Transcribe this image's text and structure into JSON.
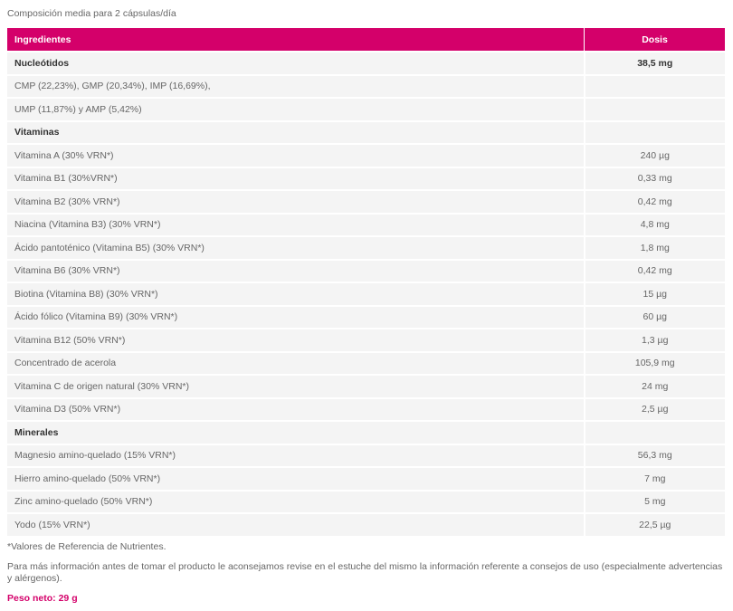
{
  "intro": "Composición media para 2 cápsulas/día",
  "table": {
    "headers": {
      "ingredient": "Ingredientes",
      "dose": "Dosis"
    },
    "rows": [
      {
        "name": "Nucleótidos",
        "dose": "38,5 mg",
        "section": true
      },
      {
        "name": "CMP (22,23%), GMP (20,34%), IMP (16,69%),",
        "dose": ""
      },
      {
        "name": "UMP (11,87%) y AMP (5,42%)",
        "dose": ""
      },
      {
        "name": "Vitaminas",
        "dose": "",
        "section": true
      },
      {
        "name": "Vitamina A  (30% VRN*)",
        "dose": "240 µg"
      },
      {
        "name": "Vitamina B1  (30%VRN*)",
        "dose": "0,33 mg"
      },
      {
        "name": "Vitamina B2  (30% VRN*)",
        "dose": "0,42 mg"
      },
      {
        "name": "Niacina (Vitamina B3)  (30% VRN*)",
        "dose": "4,8 mg"
      },
      {
        "name": "Ácido pantoténico (Vitamina B5)  (30% VRN*)",
        "dose": "1,8 mg"
      },
      {
        "name": "Vitamina B6  (30% VRN*)",
        "dose": "0,42 mg"
      },
      {
        "name": "Biotina (Vitamina B8)  (30% VRN*)",
        "dose": "15 µg"
      },
      {
        "name": "Ácido fólico (Vitamina B9) (30% VRN*)",
        "dose": "60 µg"
      },
      {
        "name": "Vitamina B12  (50% VRN*)",
        "dose": "1,3 µg"
      },
      {
        "name": "Concentrado de acerola",
        "dose": "105,9 mg"
      },
      {
        "name": "Vitamina C de origen natural  (30% VRN*)",
        "dose": "24 mg"
      },
      {
        "name": "Vitamina D3  (50% VRN*)",
        "dose": "2,5 µg"
      },
      {
        "name": "Minerales",
        "dose": "",
        "section": true
      },
      {
        "name": "Magnesio amino-quelado (15% VRN*)",
        "dose": "56,3 mg"
      },
      {
        "name": "Hierro amino-quelado (50% VRN*)",
        "dose": "7 mg"
      },
      {
        "name": "Zinc amino-quelado (50% VRN*)",
        "dose": "5 mg"
      },
      {
        "name": "Yodo (15% VRN*)",
        "dose": "22,5 µg"
      }
    ]
  },
  "footnote": "*Valores de Referencia de Nutrientes.",
  "info": "Para más información antes de tomar el producto le aconsejamos revise en el estuche del mismo la información referente a consejos de uso (especialmente advertencias y alérgenos).",
  "net_weight": "Peso neto: 29 g",
  "colors": {
    "accent": "#d4006a",
    "row_bg": "#f4f4f4"
  }
}
